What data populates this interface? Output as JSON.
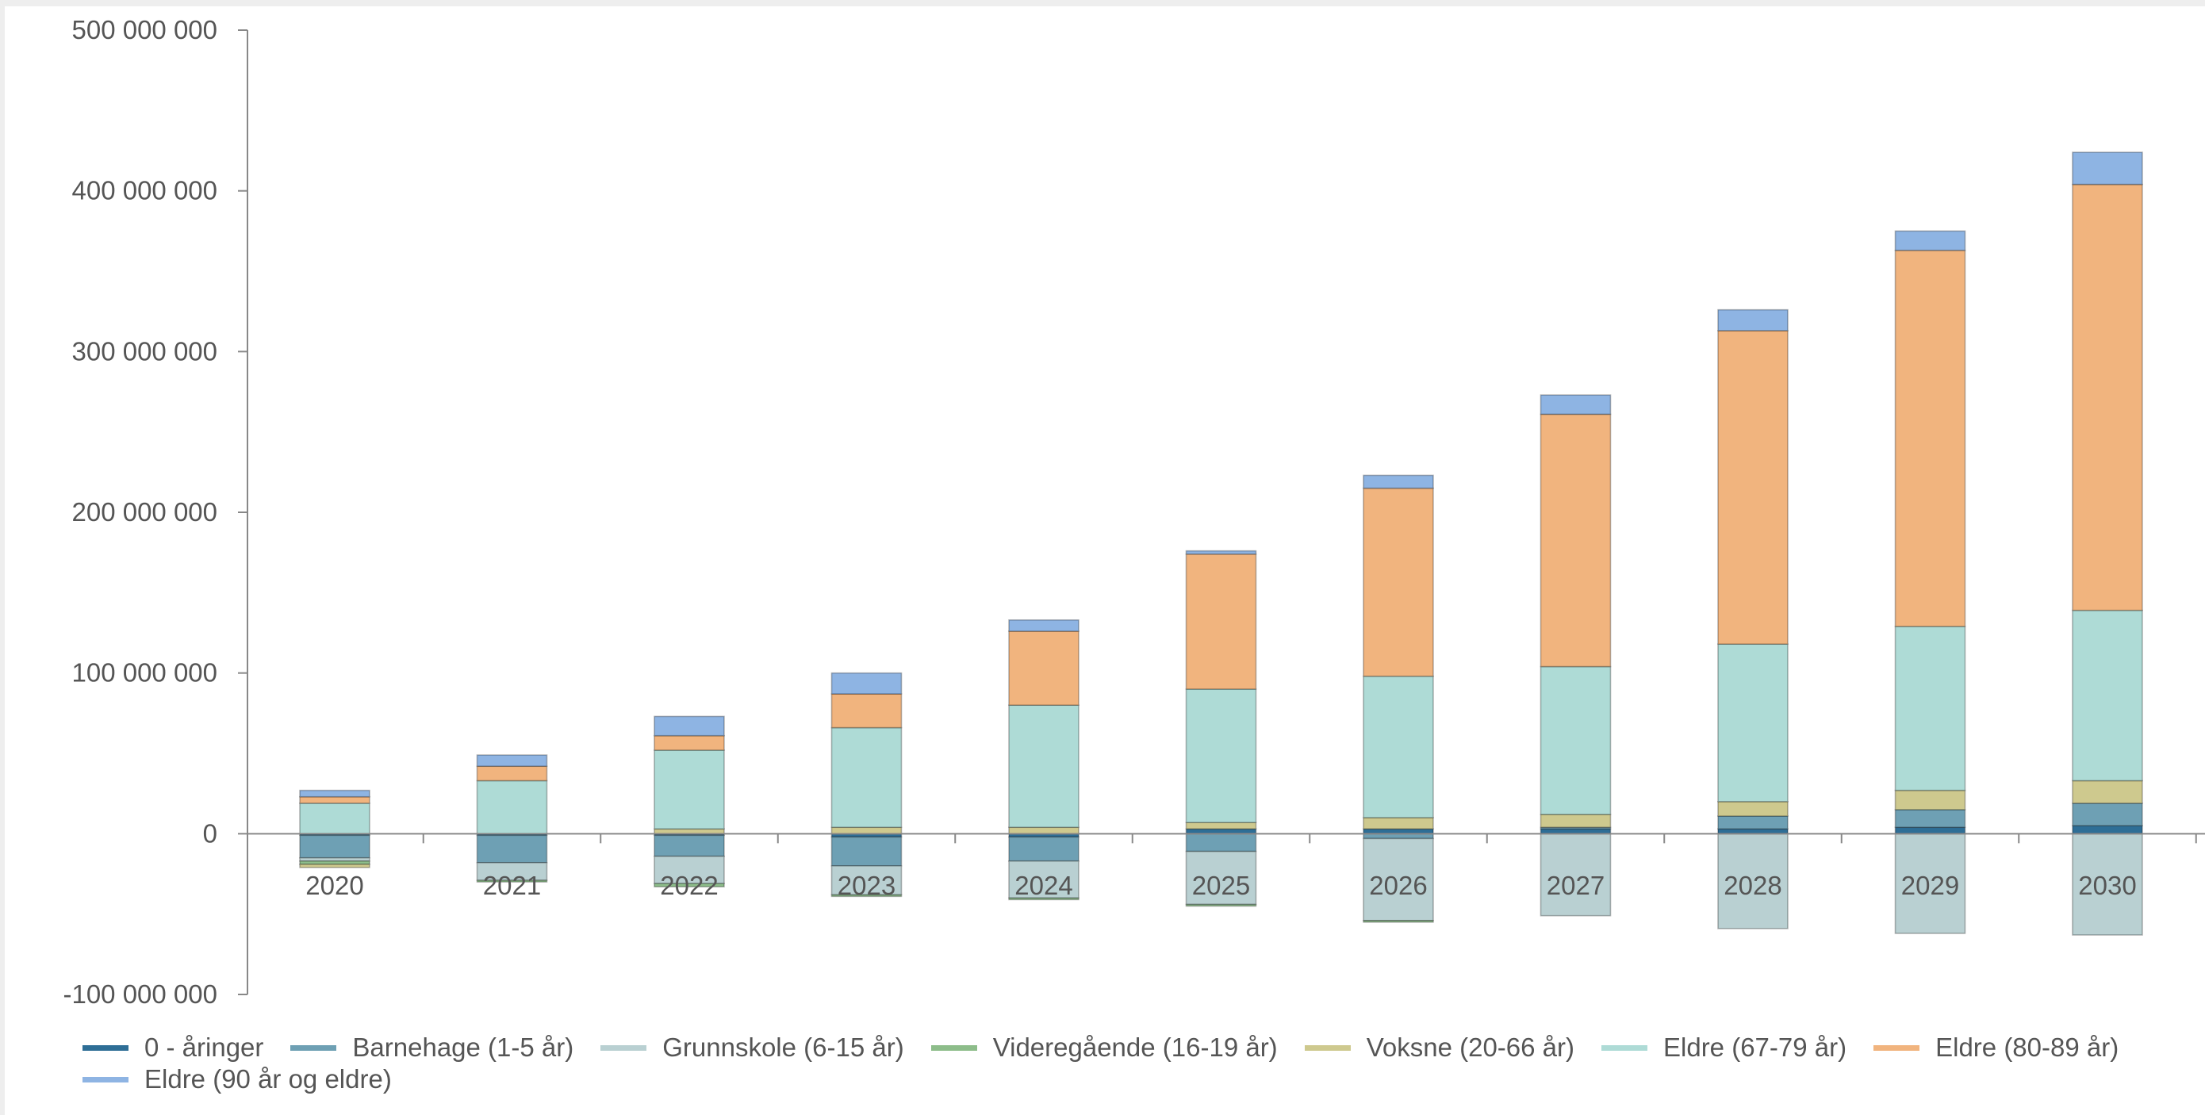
{
  "chart_data": {
    "type": "bar",
    "stacked": true,
    "title": "",
    "xlabel": "",
    "ylabel": "",
    "ylim": [
      -100000000,
      500000000
    ],
    "yticks": [
      -100000000,
      0,
      100000000,
      200000000,
      300000000,
      400000000,
      500000000
    ],
    "ytick_labels": [
      "-100 000 000",
      "0",
      "100 000 000",
      "200 000 000",
      "300 000 000",
      "400 000 000",
      "500 000 000"
    ],
    "grid": false,
    "legend_position": "bottom",
    "categories": [
      "2020",
      "2021",
      "2022",
      "2023",
      "2024",
      "2025",
      "2026",
      "2027",
      "2028",
      "2029",
      "2030"
    ],
    "series": [
      {
        "name": "0 - åringer",
        "color": "#2e6e96",
        "values": [
          -1000000,
          -1000000,
          -1000000,
          -2000000,
          -2000000,
          3000000,
          3000000,
          3000000,
          3000000,
          4000000,
          5000000
        ]
      },
      {
        "name": "Barnehage (1-5 år)",
        "color": "#6ea0b4",
        "values": [
          -14000000,
          -17000000,
          -13000000,
          -18000000,
          -15000000,
          -11000000,
          -3000000,
          1000000,
          8000000,
          11000000,
          14000000
        ]
      },
      {
        "name": "Grunnskole (6-15 år)",
        "color": "#b9d0d2",
        "values": [
          -2000000,
          -11000000,
          -17000000,
          -18000000,
          -23000000,
          -33000000,
          -51000000,
          -51000000,
          -59000000,
          -62000000,
          -63000000
        ]
      },
      {
        "name": "Videregående (16-19 år)",
        "color": "#8dbd8a",
        "values": [
          -2000000,
          -1000000,
          -2000000,
          -1000000,
          -1000000,
          -1000000,
          -1000000,
          0,
          0,
          0,
          0
        ]
      },
      {
        "name": "Voksne (20-66 år)",
        "color": "#cec98e",
        "values": [
          -2000000,
          0,
          3000000,
          4000000,
          4000000,
          4000000,
          7000000,
          8000000,
          9000000,
          12000000,
          14000000
        ]
      },
      {
        "name": "Eldre (67-79 år)",
        "color": "#aedbd6",
        "values": [
          19000000,
          33000000,
          49000000,
          62000000,
          76000000,
          83000000,
          88000000,
          92000000,
          98000000,
          102000000,
          106000000
        ]
      },
      {
        "name": "Eldre (80-89 år)",
        "color": "#f1b47e",
        "values": [
          4000000,
          9000000,
          9000000,
          21000000,
          46000000,
          84000000,
          117000000,
          157000000,
          195000000,
          234000000,
          265000000
        ]
      },
      {
        "name": "Eldre (90 år og eldre)",
        "color": "#8eb4e3",
        "values": [
          4000000,
          7000000,
          12000000,
          13000000,
          7000000,
          2000000,
          8000000,
          12000000,
          13000000,
          12000000,
          20000000
        ]
      }
    ]
  }
}
